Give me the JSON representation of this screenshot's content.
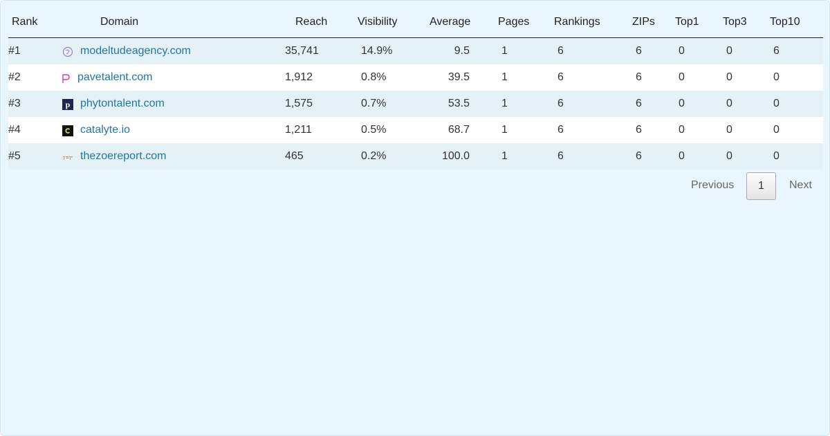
{
  "table": {
    "headers": [
      "Rank",
      "Domain",
      "Reach",
      "Visibility",
      "Average",
      "Pages",
      "Rankings",
      "ZIPs",
      "Top1",
      "Top3",
      "Top10"
    ],
    "rows": [
      [
        "#1",
        "modeltudeagency.com",
        "35,741",
        "14.9%",
        "9.5",
        "1",
        "6",
        "6",
        "0",
        "0",
        "6"
      ],
      [
        "#2",
        "pavetalent.com",
        "1,912",
        "0.8%",
        "39.5",
        "1",
        "6",
        "6",
        "0",
        "0",
        "0"
      ],
      [
        "#3",
        "phytontalent.com",
        "1,575",
        "0.7%",
        "53.5",
        "1",
        "6",
        "6",
        "0",
        "0",
        "0"
      ],
      [
        "#4",
        "catalyte.io",
        "1,211",
        "0.5%",
        "68.7",
        "1",
        "6",
        "6",
        "0",
        "0",
        "0"
      ],
      [
        "#5",
        "thezoereport.com",
        "465",
        "0.2%",
        "100.0",
        "1",
        "6",
        "6",
        "0",
        "0",
        "0"
      ]
    ]
  },
  "pagination": {
    "previous": "Previous",
    "current": "1",
    "next": "Next"
  }
}
